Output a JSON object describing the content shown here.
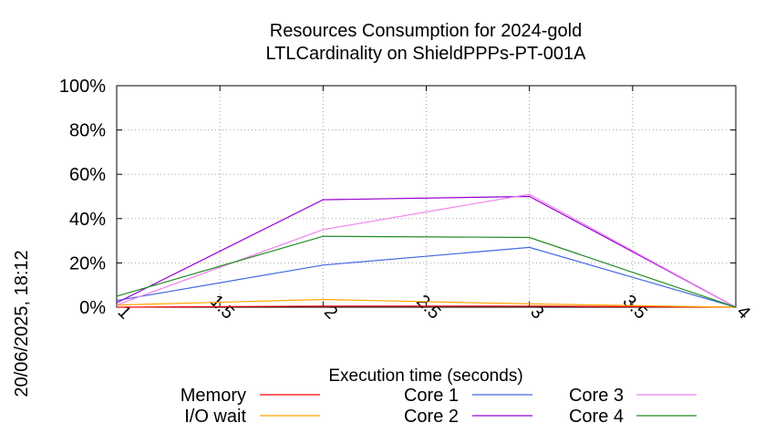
{
  "chart_data": {
    "type": "line",
    "title": "Resources Consumption for 2024-gold",
    "subtitle": "LTLCardinality on ShieldPPPs-PT-001A",
    "xlabel": "Execution time (seconds)",
    "ylabel": "",
    "xlim": [
      1,
      4
    ],
    "ylim": [
      0,
      100
    ],
    "x_ticks": [
      "1",
      "1.5",
      "2",
      "2.5",
      "3",
      "3.5",
      "4"
    ],
    "y_ticks": [
      "0%",
      "20%",
      "40%",
      "60%",
      "80%",
      "100%"
    ],
    "grid": true,
    "legend_position": "bottom",
    "side_label": "20/06/2025, 18:12",
    "series": [
      {
        "name": "Memory",
        "color": "#ff0000",
        "x": [
          1,
          2,
          3,
          4
        ],
        "values": [
          0,
          0.5,
          0.5,
          0
        ]
      },
      {
        "name": "I/O wait",
        "color": "#ffa500",
        "x": [
          1,
          2,
          3,
          4
        ],
        "values": [
          1,
          3.5,
          1.5,
          0
        ]
      },
      {
        "name": "Core 1",
        "color": "#4169e1",
        "x": [
          1,
          2,
          3,
          4
        ],
        "values": [
          3,
          19,
          27,
          0
        ]
      },
      {
        "name": "Core 2",
        "color": "#9400d3",
        "x": [
          1,
          2,
          3,
          4
        ],
        "values": [
          2,
          48.5,
          50,
          0
        ]
      },
      {
        "name": "Core 3",
        "color": "#ee82ee",
        "x": [
          1,
          2,
          3,
          4
        ],
        "values": [
          1,
          35,
          51,
          0
        ]
      },
      {
        "name": "Core 4",
        "color": "#228b22",
        "x": [
          1,
          2,
          3,
          4
        ],
        "values": [
          5,
          32,
          31.5,
          0
        ]
      }
    ]
  }
}
